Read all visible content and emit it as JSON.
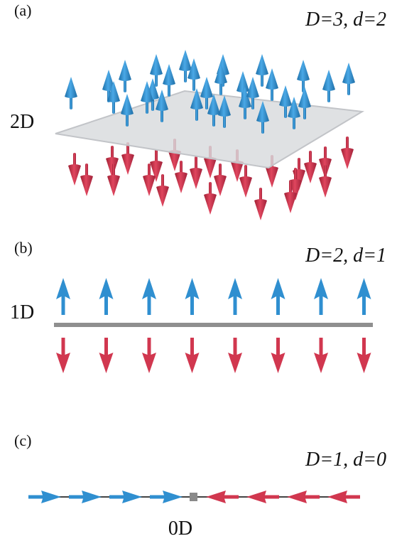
{
  "colors": {
    "up_arrow": "#2f8fd0",
    "down_arrow": "#d1374f",
    "plane": "#d6d8dc",
    "line": "#8f8f8f",
    "point": "#8a8a8a"
  },
  "panels": [
    {
      "label": "(a)",
      "dims": "D=3, d=2",
      "dimension_label": "2D",
      "boundary": "plane",
      "up_arrows": 30,
      "down_arrows": 25,
      "icon_up": "arrow-up-icon",
      "icon_down": "arrow-down-icon"
    },
    {
      "label": "(b)",
      "dims": "D=2, d=1",
      "dimension_label": "1D",
      "boundary": "line",
      "up_arrows": 8,
      "down_arrows": 8,
      "icon_up": "arrow-up-icon",
      "icon_down": "arrow-down-icon"
    },
    {
      "label": "(c)",
      "dims": "D=1, d=0",
      "dimension_label": "0D",
      "boundary": "point",
      "right_arrows": 4,
      "left_arrows": 4,
      "icon_right": "arrow-right-icon",
      "icon_left": "arrow-left-icon"
    }
  ]
}
